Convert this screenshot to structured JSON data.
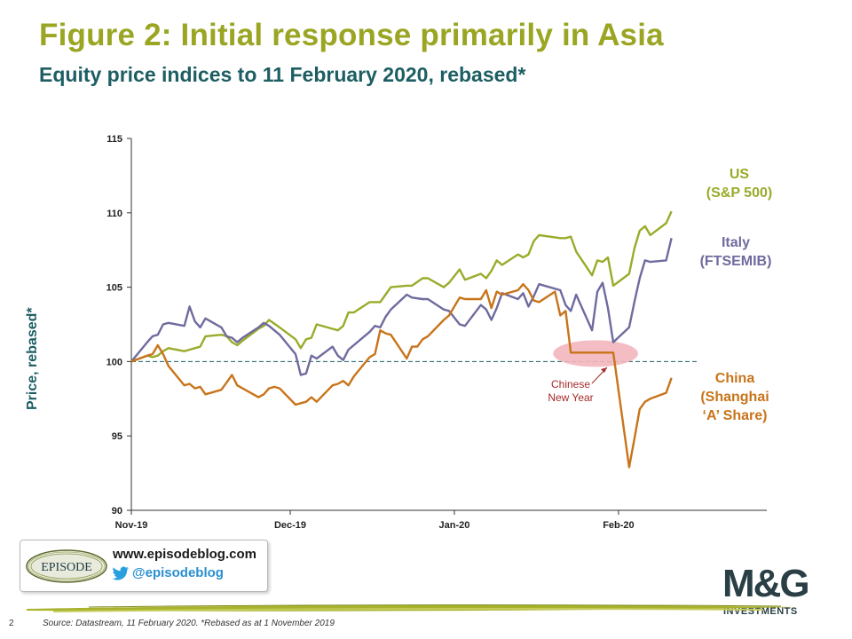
{
  "header": {
    "title": "Figure 2: Initial response primarily in Asia",
    "subtitle": "Equity price indices to 11 February 2020, rebased*"
  },
  "chart_data": {
    "type": "line",
    "ylabel": "Price, rebased*",
    "ylim": [
      90,
      115
    ],
    "yticks": [
      90,
      95,
      100,
      105,
      110,
      115
    ],
    "x_range": [
      "2019-11-01",
      "2020-02-29"
    ],
    "xticks": [
      {
        "date": "2019-11-01",
        "label": "Nov-19"
      },
      {
        "date": "2019-12-01",
        "label": "Dec-19"
      },
      {
        "date": "2020-01-01",
        "label": "Jan-20"
      },
      {
        "date": "2020-02-01",
        "label": "Feb-20"
      }
    ],
    "baseline": 100,
    "series": [
      {
        "name": "US (S&P 500)",
        "label_lines": [
          "US",
          "(S&P 500)"
        ],
        "color": "#9AAB2A",
        "points": [
          [
            "2019-11-01",
            100.0
          ],
          [
            "2019-11-04",
            100.4
          ],
          [
            "2019-11-05",
            100.3
          ],
          [
            "2019-11-06",
            100.4
          ],
          [
            "2019-11-07",
            100.7
          ],
          [
            "2019-11-08",
            100.9
          ],
          [
            "2019-11-11",
            100.7
          ],
          [
            "2019-11-12",
            100.8
          ],
          [
            "2019-11-13",
            100.9
          ],
          [
            "2019-11-14",
            101.0
          ],
          [
            "2019-11-15",
            101.7
          ],
          [
            "2019-11-18",
            101.8
          ],
          [
            "2019-11-19",
            101.7
          ],
          [
            "2019-11-20",
            101.3
          ],
          [
            "2019-11-21",
            101.1
          ],
          [
            "2019-11-22",
            101.4
          ],
          [
            "2019-11-25",
            102.2
          ],
          [
            "2019-11-26",
            102.4
          ],
          [
            "2019-11-27",
            102.8
          ],
          [
            "2019-11-29",
            102.3
          ],
          [
            "2019-12-02",
            101.5
          ],
          [
            "2019-12-03",
            100.9
          ],
          [
            "2019-12-04",
            101.5
          ],
          [
            "2019-12-05",
            101.6
          ],
          [
            "2019-12-06",
            102.5
          ],
          [
            "2019-12-09",
            102.2
          ],
          [
            "2019-12-10",
            102.1
          ],
          [
            "2019-12-11",
            102.4
          ],
          [
            "2019-12-12",
            103.3
          ],
          [
            "2019-12-13",
            103.3
          ],
          [
            "2019-12-16",
            104.0
          ],
          [
            "2019-12-17",
            104.0
          ],
          [
            "2019-12-18",
            104.0
          ],
          [
            "2019-12-19",
            104.5
          ],
          [
            "2019-12-20",
            105.0
          ],
          [
            "2019-12-23",
            105.1
          ],
          [
            "2019-12-24",
            105.1
          ],
          [
            "2019-12-26",
            105.6
          ],
          [
            "2019-12-27",
            105.6
          ],
          [
            "2019-12-30",
            105.0
          ],
          [
            "2019-12-31",
            105.3
          ],
          [
            "2020-01-02",
            106.2
          ],
          [
            "2020-01-03",
            105.5
          ],
          [
            "2020-01-06",
            105.9
          ],
          [
            "2020-01-07",
            105.6
          ],
          [
            "2020-01-08",
            106.1
          ],
          [
            "2020-01-09",
            106.8
          ],
          [
            "2020-01-10",
            106.5
          ],
          [
            "2020-01-13",
            107.2
          ],
          [
            "2020-01-14",
            107.0
          ],
          [
            "2020-01-15",
            107.2
          ],
          [
            "2020-01-16",
            108.1
          ],
          [
            "2020-01-17",
            108.5
          ],
          [
            "2020-01-21",
            108.3
          ],
          [
            "2020-01-22",
            108.3
          ],
          [
            "2020-01-23",
            108.4
          ],
          [
            "2020-01-24",
            107.4
          ],
          [
            "2020-01-27",
            105.8
          ],
          [
            "2020-01-28",
            106.8
          ],
          [
            "2020-01-29",
            106.7
          ],
          [
            "2020-01-30",
            107.0
          ],
          [
            "2020-01-31",
            105.1
          ],
          [
            "2020-02-03",
            105.9
          ],
          [
            "2020-02-04",
            107.6
          ],
          [
            "2020-02-05",
            108.8
          ],
          [
            "2020-02-06",
            109.1
          ],
          [
            "2020-02-07",
            108.5
          ],
          [
            "2020-02-10",
            109.3
          ],
          [
            "2020-02-11",
            110.1
          ]
        ]
      },
      {
        "name": "Italy (FTSEMIB)",
        "label_lines": [
          "Italy",
          "(FTSEMIB)"
        ],
        "color": "#6E6B9E",
        "points": [
          [
            "2019-11-01",
            100.0
          ],
          [
            "2019-11-04",
            101.3
          ],
          [
            "2019-11-05",
            101.7
          ],
          [
            "2019-11-06",
            101.8
          ],
          [
            "2019-11-07",
            102.5
          ],
          [
            "2019-11-08",
            102.6
          ],
          [
            "2019-11-11",
            102.4
          ],
          [
            "2019-11-12",
            103.7
          ],
          [
            "2019-11-13",
            102.7
          ],
          [
            "2019-11-14",
            102.3
          ],
          [
            "2019-11-15",
            102.9
          ],
          [
            "2019-11-18",
            102.3
          ],
          [
            "2019-11-19",
            101.7
          ],
          [
            "2019-11-20",
            101.6
          ],
          [
            "2019-11-21",
            101.3
          ],
          [
            "2019-11-22",
            101.6
          ],
          [
            "2019-11-25",
            102.3
          ],
          [
            "2019-11-26",
            102.6
          ],
          [
            "2019-11-27",
            102.4
          ],
          [
            "2019-11-29",
            101.8
          ],
          [
            "2019-12-02",
            100.5
          ],
          [
            "2019-12-03",
            99.1
          ],
          [
            "2019-12-04",
            99.2
          ],
          [
            "2019-12-05",
            100.4
          ],
          [
            "2019-12-06",
            100.2
          ],
          [
            "2019-12-09",
            101.0
          ],
          [
            "2019-12-10",
            100.4
          ],
          [
            "2019-12-11",
            100.1
          ],
          [
            "2019-12-12",
            100.8
          ],
          [
            "2019-12-13",
            101.1
          ],
          [
            "2019-12-16",
            102.0
          ],
          [
            "2019-12-17",
            102.4
          ],
          [
            "2019-12-18",
            102.3
          ],
          [
            "2019-12-19",
            103.0
          ],
          [
            "2019-12-20",
            103.5
          ],
          [
            "2019-12-23",
            104.5
          ],
          [
            "2019-12-24",
            104.3
          ],
          [
            "2019-12-26",
            104.2
          ],
          [
            "2019-12-27",
            104.2
          ],
          [
            "2019-12-30",
            103.5
          ],
          [
            "2019-12-31",
            103.4
          ],
          [
            "2020-01-02",
            102.5
          ],
          [
            "2020-01-03",
            102.4
          ],
          [
            "2020-01-06",
            103.8
          ],
          [
            "2020-01-07",
            103.5
          ],
          [
            "2020-01-08",
            102.8
          ],
          [
            "2020-01-09",
            103.6
          ],
          [
            "2020-01-10",
            104.6
          ],
          [
            "2020-01-13",
            104.2
          ],
          [
            "2020-01-14",
            104.6
          ],
          [
            "2020-01-15",
            103.7
          ],
          [
            "2020-01-16",
            104.4
          ],
          [
            "2020-01-17",
            105.2
          ],
          [
            "2020-01-21",
            104.8
          ],
          [
            "2020-01-22",
            103.8
          ],
          [
            "2020-01-23",
            103.4
          ],
          [
            "2020-01-24",
            104.5
          ],
          [
            "2020-01-27",
            102.1
          ],
          [
            "2020-01-28",
            104.7
          ],
          [
            "2020-01-29",
            105.3
          ],
          [
            "2020-01-30",
            103.6
          ],
          [
            "2020-01-31",
            101.3
          ],
          [
            "2020-02-03",
            102.3
          ],
          [
            "2020-02-04",
            104.0
          ],
          [
            "2020-02-05",
            105.6
          ],
          [
            "2020-02-06",
            106.8
          ],
          [
            "2020-02-07",
            106.7
          ],
          [
            "2020-02-10",
            106.8
          ],
          [
            "2020-02-11",
            108.3
          ]
        ]
      },
      {
        "name": "China (Shanghai 'A' Share)",
        "label_lines": [
          "China",
          "(Shanghai",
          "‘A’ Share)"
        ],
        "color": "#C8741A",
        "points": [
          [
            "2019-11-01",
            100.0
          ],
          [
            "2019-11-04",
            100.4
          ],
          [
            "2019-11-05",
            100.5
          ],
          [
            "2019-11-06",
            101.1
          ],
          [
            "2019-11-07",
            100.5
          ],
          [
            "2019-11-08",
            99.7
          ],
          [
            "2019-11-11",
            98.4
          ],
          [
            "2019-11-12",
            98.5
          ],
          [
            "2019-11-13",
            98.2
          ],
          [
            "2019-11-14",
            98.3
          ],
          [
            "2019-11-15",
            97.8
          ],
          [
            "2019-11-18",
            98.1
          ],
          [
            "2019-11-19",
            98.6
          ],
          [
            "2019-11-20",
            99.1
          ],
          [
            "2019-11-21",
            98.4
          ],
          [
            "2019-11-22",
            98.2
          ],
          [
            "2019-11-25",
            97.6
          ],
          [
            "2019-11-26",
            97.8
          ],
          [
            "2019-11-27",
            98.2
          ],
          [
            "2019-11-28",
            98.3
          ],
          [
            "2019-11-29",
            98.2
          ],
          [
            "2019-12-02",
            97.1
          ],
          [
            "2019-12-03",
            97.2
          ],
          [
            "2019-12-04",
            97.3
          ],
          [
            "2019-12-05",
            97.6
          ],
          [
            "2019-12-06",
            97.3
          ],
          [
            "2019-12-09",
            98.4
          ],
          [
            "2019-12-10",
            98.5
          ],
          [
            "2019-12-11",
            98.7
          ],
          [
            "2019-12-12",
            98.4
          ],
          [
            "2019-12-13",
            99.0
          ],
          [
            "2019-12-16",
            100.3
          ],
          [
            "2019-12-17",
            100.5
          ],
          [
            "2019-12-18",
            102.1
          ],
          [
            "2019-12-19",
            101.9
          ],
          [
            "2019-12-20",
            101.8
          ],
          [
            "2019-12-23",
            100.2
          ],
          [
            "2019-12-24",
            101.0
          ],
          [
            "2019-12-25",
            101.0
          ],
          [
            "2019-12-26",
            101.5
          ],
          [
            "2019-12-27",
            101.7
          ],
          [
            "2019-12-30",
            102.8
          ],
          [
            "2019-12-31",
            103.1
          ],
          [
            "2020-01-02",
            104.3
          ],
          [
            "2020-01-03",
            104.2
          ],
          [
            "2020-01-06",
            104.2
          ],
          [
            "2020-01-07",
            104.8
          ],
          [
            "2020-01-08",
            103.6
          ],
          [
            "2020-01-09",
            104.7
          ],
          [
            "2020-01-10",
            104.5
          ],
          [
            "2020-01-13",
            104.8
          ],
          [
            "2020-01-14",
            105.2
          ],
          [
            "2020-01-15",
            104.8
          ],
          [
            "2020-01-16",
            104.1
          ],
          [
            "2020-01-17",
            104.0
          ],
          [
            "2020-01-20",
            104.7
          ],
          [
            "2020-01-21",
            103.1
          ],
          [
            "2020-01-22",
            103.4
          ],
          [
            "2020-01-23",
            100.6
          ],
          [
            "2020-01-31",
            100.6
          ],
          [
            "2020-02-03",
            92.9
          ],
          [
            "2020-02-04",
            94.8
          ],
          [
            "2020-02-05",
            96.8
          ],
          [
            "2020-02-06",
            97.3
          ],
          [
            "2020-02-07",
            97.5
          ],
          [
            "2020-02-10",
            97.9
          ],
          [
            "2020-02-11",
            98.9
          ]
        ]
      }
    ],
    "annotation": {
      "text_lines": [
        "Chinese",
        "New Year"
      ],
      "color": "#A52A2A",
      "highlight_color": "#F2B6BC",
      "start": "2020-01-23",
      "end": "2020-01-31",
      "value": 100.6
    }
  },
  "branding": {
    "website": "www.episodeblog.com",
    "twitter_handle": "@episodeblog",
    "episode_logo_text": "EPISODE",
    "mg_logo_text": "M&G",
    "mg_subtext": "INVESTMENTS"
  },
  "footer": {
    "page_number": "2",
    "source": "Source: Datastream, 11 February 2020. *Rebased as at 1 November 2019"
  }
}
